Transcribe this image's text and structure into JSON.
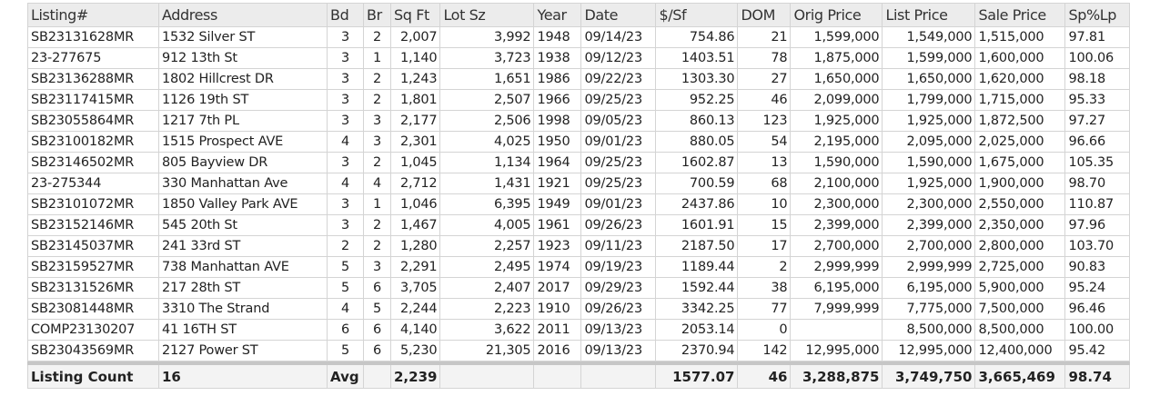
{
  "columns": [
    "Listing#",
    "Address",
    "Bd",
    "Br",
    "Sq Ft",
    "Lot Sz",
    "Year",
    "Date",
    "$/Sf",
    "DOM",
    "Orig Price",
    "List Price",
    "Sale Price",
    "Sp%Lp"
  ],
  "rows": [
    [
      "SB23131628MR",
      "1532 Silver ST",
      "3",
      "2",
      "2,007",
      "3,992",
      "1948",
      "09/14/23",
      "754.86",
      "21",
      "1,599,000",
      "1,549,000",
      "1,515,000",
      "97.81"
    ],
    [
      "23-277675",
      "912 13th St",
      "3",
      "1",
      "1,140",
      "3,723",
      "1938",
      "09/12/23",
      "1403.51",
      "78",
      "1,875,000",
      "1,599,000",
      "1,600,000",
      "100.06"
    ],
    [
      "SB23136288MR",
      "1802 Hillcrest DR",
      "3",
      "2",
      "1,243",
      "1,651",
      "1986",
      "09/22/23",
      "1303.30",
      "27",
      "1,650,000",
      "1,650,000",
      "1,620,000",
      "98.18"
    ],
    [
      "SB23117415MR",
      "1126 19th ST",
      "3",
      "2",
      "1,801",
      "2,507",
      "1966",
      "09/25/23",
      "952.25",
      "46",
      "2,099,000",
      "1,799,000",
      "1,715,000",
      "95.33"
    ],
    [
      "SB23055864MR",
      "1217 7th PL",
      "3",
      "3",
      "2,177",
      "2,506",
      "1998",
      "09/05/23",
      "860.13",
      "123",
      "1,925,000",
      "1,925,000",
      "1,872,500",
      "97.27"
    ],
    [
      "SB23100182MR",
      "1515 Prospect AVE",
      "4",
      "3",
      "2,301",
      "4,025",
      "1950",
      "09/01/23",
      "880.05",
      "54",
      "2,195,000",
      "2,095,000",
      "2,025,000",
      "96.66"
    ],
    [
      "SB23146502MR",
      "805 Bayview DR",
      "3",
      "2",
      "1,045",
      "1,134",
      "1964",
      "09/25/23",
      "1602.87",
      "13",
      "1,590,000",
      "1,590,000",
      "1,675,000",
      "105.35"
    ],
    [
      "23-275344",
      "330 Manhattan Ave",
      "4",
      "4",
      "2,712",
      "1,431",
      "1921",
      "09/25/23",
      "700.59",
      "68",
      "2,100,000",
      "1,925,000",
      "1,900,000",
      "98.70"
    ],
    [
      "SB23101072MR",
      "1850 Valley Park AVE",
      "3",
      "1",
      "1,046",
      "6,395",
      "1949",
      "09/01/23",
      "2437.86",
      "10",
      "2,300,000",
      "2,300,000",
      "2,550,000",
      "110.87"
    ],
    [
      "SB23152146MR",
      "545 20th St",
      "3",
      "2",
      "1,467",
      "4,005",
      "1961",
      "09/26/23",
      "1601.91",
      "15",
      "2,399,000",
      "2,399,000",
      "2,350,000",
      "97.96"
    ],
    [
      "SB23145037MR",
      "241 33rd ST",
      "2",
      "2",
      "1,280",
      "2,257",
      "1923",
      "09/11/23",
      "2187.50",
      "17",
      "2,700,000",
      "2,700,000",
      "2,800,000",
      "103.70"
    ],
    [
      "SB23159527MR",
      "738 Manhattan AVE",
      "5",
      "3",
      "2,291",
      "2,495",
      "1974",
      "09/19/23",
      "1189.44",
      "2",
      "2,999,999",
      "2,999,999",
      "2,725,000",
      "90.83"
    ],
    [
      "SB23131526MR",
      "217 28th ST",
      "5",
      "6",
      "3,705",
      "2,407",
      "2017",
      "09/29/23",
      "1592.44",
      "38",
      "6,195,000",
      "6,195,000",
      "5,900,000",
      "95.24"
    ],
    [
      "SB23081448MR",
      "3310 The Strand",
      "4",
      "5",
      "2,244",
      "2,223",
      "1910",
      "09/26/23",
      "3342.25",
      "77",
      "7,999,999",
      "7,775,000",
      "7,500,000",
      "96.46"
    ],
    [
      "COMP23130207",
      "41 16TH ST",
      "6",
      "6",
      "4,140",
      "3,622",
      "2011",
      "09/13/23",
      "2053.14",
      "0",
      "",
      "8,500,000",
      "8,500,000",
      "100.00"
    ],
    [
      "SB23043569MR",
      "2127 Power ST",
      "5",
      "6",
      "5,230",
      "21,305",
      "2016",
      "09/13/23",
      "2370.94",
      "142",
      "12,995,000",
      "12,995,000",
      "12,400,000",
      "95.42"
    ]
  ],
  "summary": [
    "Listing Count",
    "16",
    "Avg",
    "",
    "2,239",
    "",
    "",
    "",
    "1577.07",
    "46",
    "3,288,875",
    "3,749,750",
    "3,665,469",
    "98.74"
  ]
}
